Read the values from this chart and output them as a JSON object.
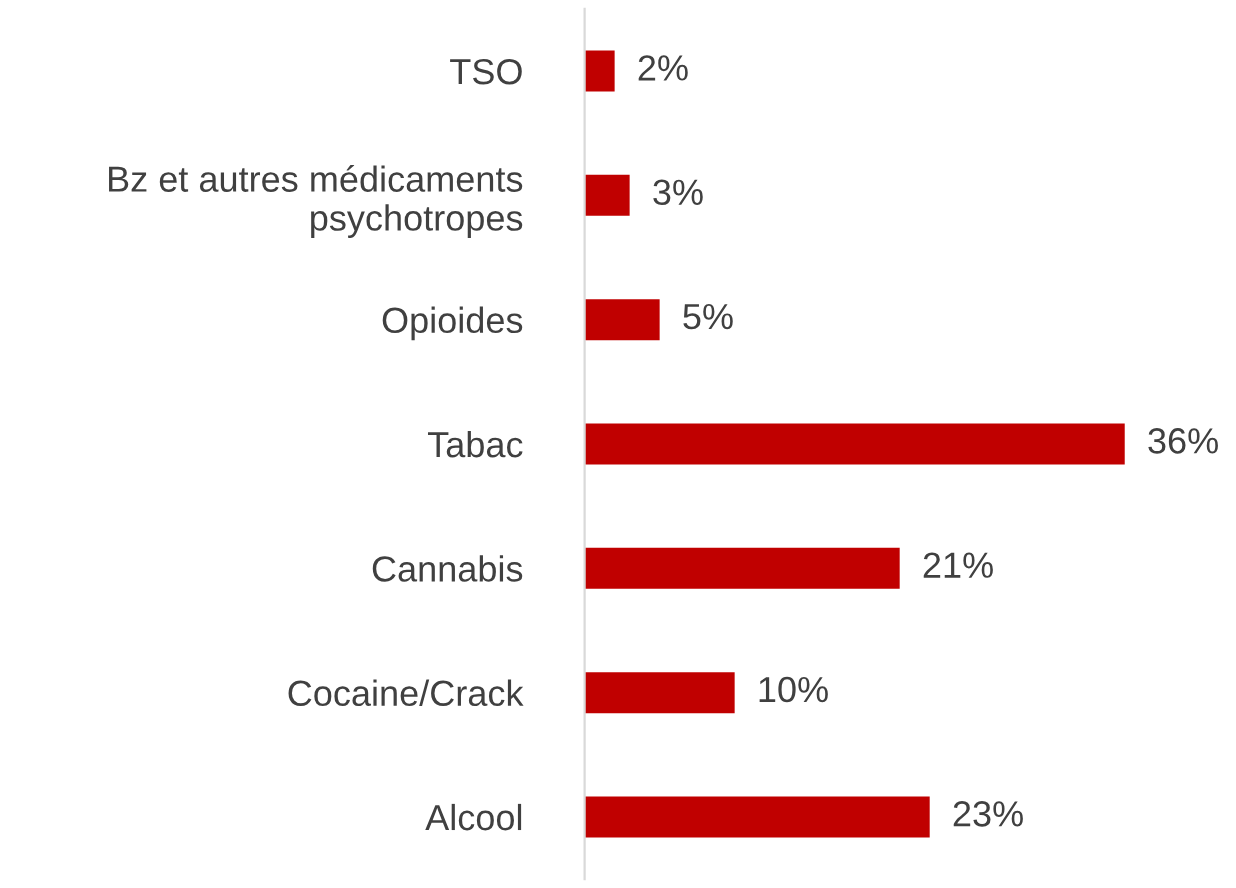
{
  "chart_data": {
    "type": "bar",
    "orientation": "horizontal",
    "data_labels": true,
    "categories": [
      "TSO",
      "Bz et autres médicaments\npsychotropes",
      "Opioides",
      "Tabac",
      "Cannabis",
      "Cocaine/Crack",
      "Alcool"
    ],
    "values": [
      2,
      3,
      5,
      36,
      21,
      10,
      23
    ],
    "value_labels": [
      "2%",
      "3%",
      "5%",
      "36%",
      "21%",
      "10%",
      "23%"
    ],
    "color": "#c00000",
    "grid": false,
    "legend": false
  }
}
